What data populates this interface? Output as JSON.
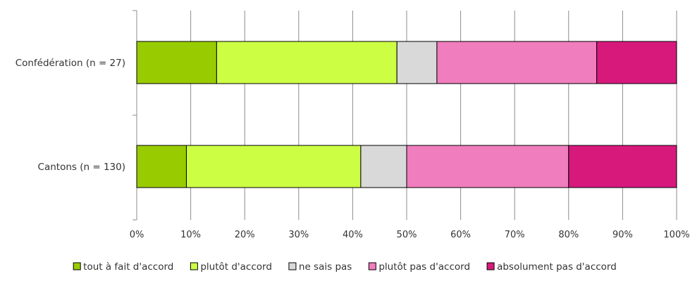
{
  "chart_data": {
    "type": "bar",
    "orientation": "horizontal",
    "stacked": true,
    "percent": true,
    "categories": [
      "Confédération (n = 27)",
      "Cantons (n = 130)"
    ],
    "series": [
      {
        "name": "tout à fait d'accord",
        "values": [
          14.8,
          9.2
        ],
        "color": "#99cc00"
      },
      {
        "name": "plutôt d'accord",
        "values": [
          33.4,
          32.3
        ],
        "color": "#ccff44"
      },
      {
        "name": "ne sais pas",
        "values": [
          7.4,
          8.5
        ],
        "color": "#d9d9d9"
      },
      {
        "name": "plutôt pas d'accord",
        "values": [
          29.6,
          30.0
        ],
        "color": "#f07dbd"
      },
      {
        "name": "absolument pas d'accord",
        "values": [
          14.8,
          20.0
        ],
        "color": "#d7197c"
      }
    ],
    "xlim": [
      0,
      100
    ],
    "xticks": [
      "0%",
      "10%",
      "20%",
      "30%",
      "40%",
      "50%",
      "60%",
      "70%",
      "80%",
      "90%",
      "100%"
    ],
    "grid": true,
    "legend_position": "bottom",
    "title": "",
    "xlabel": "",
    "ylabel": ""
  }
}
